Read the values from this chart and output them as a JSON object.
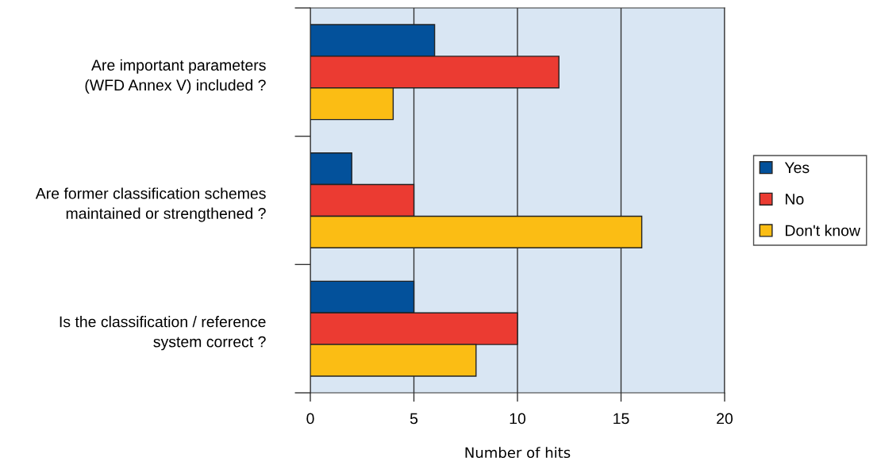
{
  "chart_data": {
    "type": "bar",
    "orientation": "horizontal",
    "xlabel": "Number of hits",
    "categories": [
      "Are important parameters\n(WFD Annex V) included ?",
      "Are former classification schemes\nmaintained or strengthened ?",
      "Is the classification / reference\nsystem correct ?"
    ],
    "series": [
      {
        "name": "Yes",
        "color": "#03519b",
        "values": [
          6,
          2,
          5
        ]
      },
      {
        "name": "No",
        "color": "#eb3b32",
        "values": [
          12,
          5,
          10
        ]
      },
      {
        "name": "Don't know",
        "color": "#fbbd14",
        "values": [
          4,
          16,
          8
        ]
      }
    ],
    "xlim": [
      0,
      20
    ],
    "xticks": [
      0,
      5,
      10,
      15,
      20
    ],
    "grid": "x",
    "legend": "right"
  }
}
